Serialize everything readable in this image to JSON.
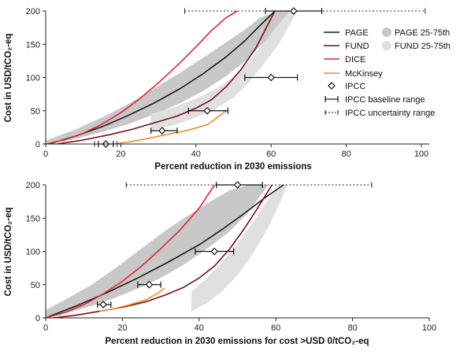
{
  "chart_data": [
    {
      "type": "line",
      "xlabel": "Percent reduction in 2030 emissions",
      "ylabel": "Cost in USD/tCO₂-eq",
      "xlim": [
        0,
        100
      ],
      "ylim": [
        0,
        200
      ],
      "xticks": [
        "0",
        "20",
        "40",
        "60",
        "80",
        "100"
      ],
      "yticks": [
        "0",
        "50",
        "100",
        "150",
        "200"
      ],
      "grid": false,
      "legend_position": "top-right",
      "legend": {
        "page": "PAGE",
        "fund": "FUND",
        "dice": "DICE",
        "mckinsey": "McKinsey",
        "ipcc": "IPCC",
        "page_band": "PAGE 25-75th",
        "fund_band": "FUND 25-75th",
        "ipcc_baseline": "IPCC baseline range",
        "ipcc_uncertainty": "IPCC uncertainty range"
      },
      "colors": {
        "page": "#1a1a1a",
        "fund": "#7a0e12",
        "dice": "#e0262c",
        "mckinsey": "#f08c2a",
        "page_band": "#c8c8c8",
        "fund_band": "#e0e0e0"
      },
      "series": [
        {
          "key": "page",
          "x": [
            1,
            8,
            15,
            22,
            29,
            36,
            42,
            48,
            53,
            57,
            61
          ],
          "y": [
            0,
            12,
            26,
            43,
            62,
            84,
            106,
            131,
            155,
            178,
            200
          ]
        },
        {
          "key": "fund",
          "x": [
            3,
            10,
            17,
            23,
            29,
            35,
            40,
            44,
            48,
            52,
            56,
            59,
            61
          ],
          "y": [
            0,
            6,
            14,
            22,
            32,
            42,
            54,
            66,
            86,
            112,
            145,
            178,
            200
          ]
        },
        {
          "key": "dice",
          "x": [
            0,
            5,
            10,
            15,
            20,
            25,
            30,
            35,
            40,
            44,
            48,
            51
          ],
          "y": [
            0,
            6,
            16,
            30,
            47,
            68,
            92,
            118,
            146,
            170,
            190,
            200
          ]
        },
        {
          "key": "mckinsey",
          "x": [
            18,
            22,
            27,
            32,
            38,
            43,
            45,
            48
          ],
          "y": [
            0,
            3,
            8,
            14,
            21,
            29,
            37,
            50
          ]
        }
      ],
      "bands": [
        {
          "key": "page_band",
          "x": [
            0,
            8,
            15,
            22,
            29,
            36,
            42,
            48,
            53,
            57,
            62,
            67
          ],
          "low": [
            2,
            8,
            18,
            30,
            45,
            62,
            80,
            102,
            124,
            147,
            172,
            200
          ],
          "high": [
            5,
            22,
            40,
            60,
            84,
            108,
            130,
            153,
            172,
            190,
            200,
            200
          ]
        },
        {
          "key": "fund_band",
          "x": [
            28,
            34,
            40,
            45,
            50,
            54,
            58,
            62,
            65,
            67
          ],
          "low": [
            20,
            28,
            40,
            52,
            70,
            92,
            120,
            150,
            180,
            200
          ],
          "high": [
            45,
            55,
            68,
            82,
            100,
            124,
            152,
            180,
            200,
            200
          ]
        }
      ],
      "ipcc_points": [
        {
          "x": 16,
          "y": 0,
          "baseline": [
            14,
            18
          ],
          "uncertainty": [
            13,
            19
          ]
        },
        {
          "x": 31,
          "y": 20,
          "baseline": [
            28,
            35
          ]
        },
        {
          "x": 43,
          "y": 50,
          "baseline": [
            38,
            48.5
          ]
        },
        {
          "x": 60,
          "y": 100,
          "baseline": [
            53,
            67
          ]
        },
        {
          "x": 66,
          "y": 200,
          "baseline": [
            58.5,
            73.5
          ],
          "uncertainty": [
            37,
            101
          ]
        }
      ]
    },
    {
      "type": "line",
      "xlabel": "Percent reduction in 2030 emissions for cost >USD 0/tCO₂-eq",
      "ylabel": "Cost in USD/tCO₂-eq",
      "xlim": [
        0,
        100
      ],
      "ylim": [
        0,
        200
      ],
      "xticks": [
        "0",
        "20",
        "40",
        "60",
        "80",
        "100"
      ],
      "yticks": [
        "0",
        "50",
        "100",
        "150",
        "200"
      ],
      "grid": false,
      "colors": {
        "page": "#1a1a1a",
        "fund": "#7a0e12",
        "dice": "#e0262c",
        "mckinsey": "#f08c2a",
        "page_band": "#c8c8c8",
        "fund_band": "#e0e0e0"
      },
      "series": [
        {
          "key": "page",
          "x": [
            0,
            8,
            16,
            24,
            32,
            40,
            46,
            52,
            57,
            62
          ],
          "y": [
            0,
            18,
            38,
            60,
            84,
            110,
            133,
            158,
            180,
            200
          ]
        },
        {
          "key": "fund",
          "x": [
            2,
            8,
            14,
            20,
            26,
            31,
            36,
            40,
            44,
            48,
            52,
            56,
            59
          ],
          "y": [
            0,
            4,
            10,
            16,
            24,
            34,
            46,
            60,
            78,
            104,
            136,
            172,
            200
          ]
        },
        {
          "key": "dice",
          "x": [
            0,
            5,
            10,
            15,
            20,
            25,
            30,
            35,
            40,
            44
          ],
          "y": [
            0,
            8,
            20,
            36,
            55,
            78,
            104,
            132,
            165,
            200
          ]
        },
        {
          "key": "mckinsey",
          "x": [
            14,
            18,
            22,
            26,
            29,
            31
          ],
          "y": [
            10,
            14,
            20,
            27,
            36,
            45
          ]
        }
      ],
      "bands": [
        {
          "key": "page_band",
          "x": [
            0,
            6,
            12,
            18,
            24,
            30,
            36,
            42,
            48,
            53,
            58
          ],
          "low": [
            2,
            8,
            18,
            30,
            44,
            60,
            80,
            104,
            130,
            160,
            200
          ],
          "high": [
            12,
            30,
            50,
            74,
            100,
            126,
            150,
            172,
            192,
            200,
            200
          ]
        },
        {
          "key": "fund_band",
          "x": [
            38,
            42,
            46,
            50,
            54,
            58,
            61,
            63
          ],
          "low": [
            10,
            22,
            40,
            64,
            96,
            136,
            172,
            200
          ],
          "high": [
            40,
            60,
            84,
            112,
            144,
            178,
            200,
            200
          ]
        }
      ],
      "ipcc_points": [
        {
          "x": 15,
          "y": 20,
          "baseline": [
            13.5,
            17
          ]
        },
        {
          "x": 27,
          "y": 50,
          "baseline": [
            24,
            30
          ]
        },
        {
          "x": 44,
          "y": 100,
          "baseline": [
            39,
            49
          ]
        },
        {
          "x": 50,
          "y": 200,
          "baseline": [
            44.5,
            56.5
          ],
          "uncertainty": [
            21,
            85
          ]
        }
      ]
    }
  ]
}
